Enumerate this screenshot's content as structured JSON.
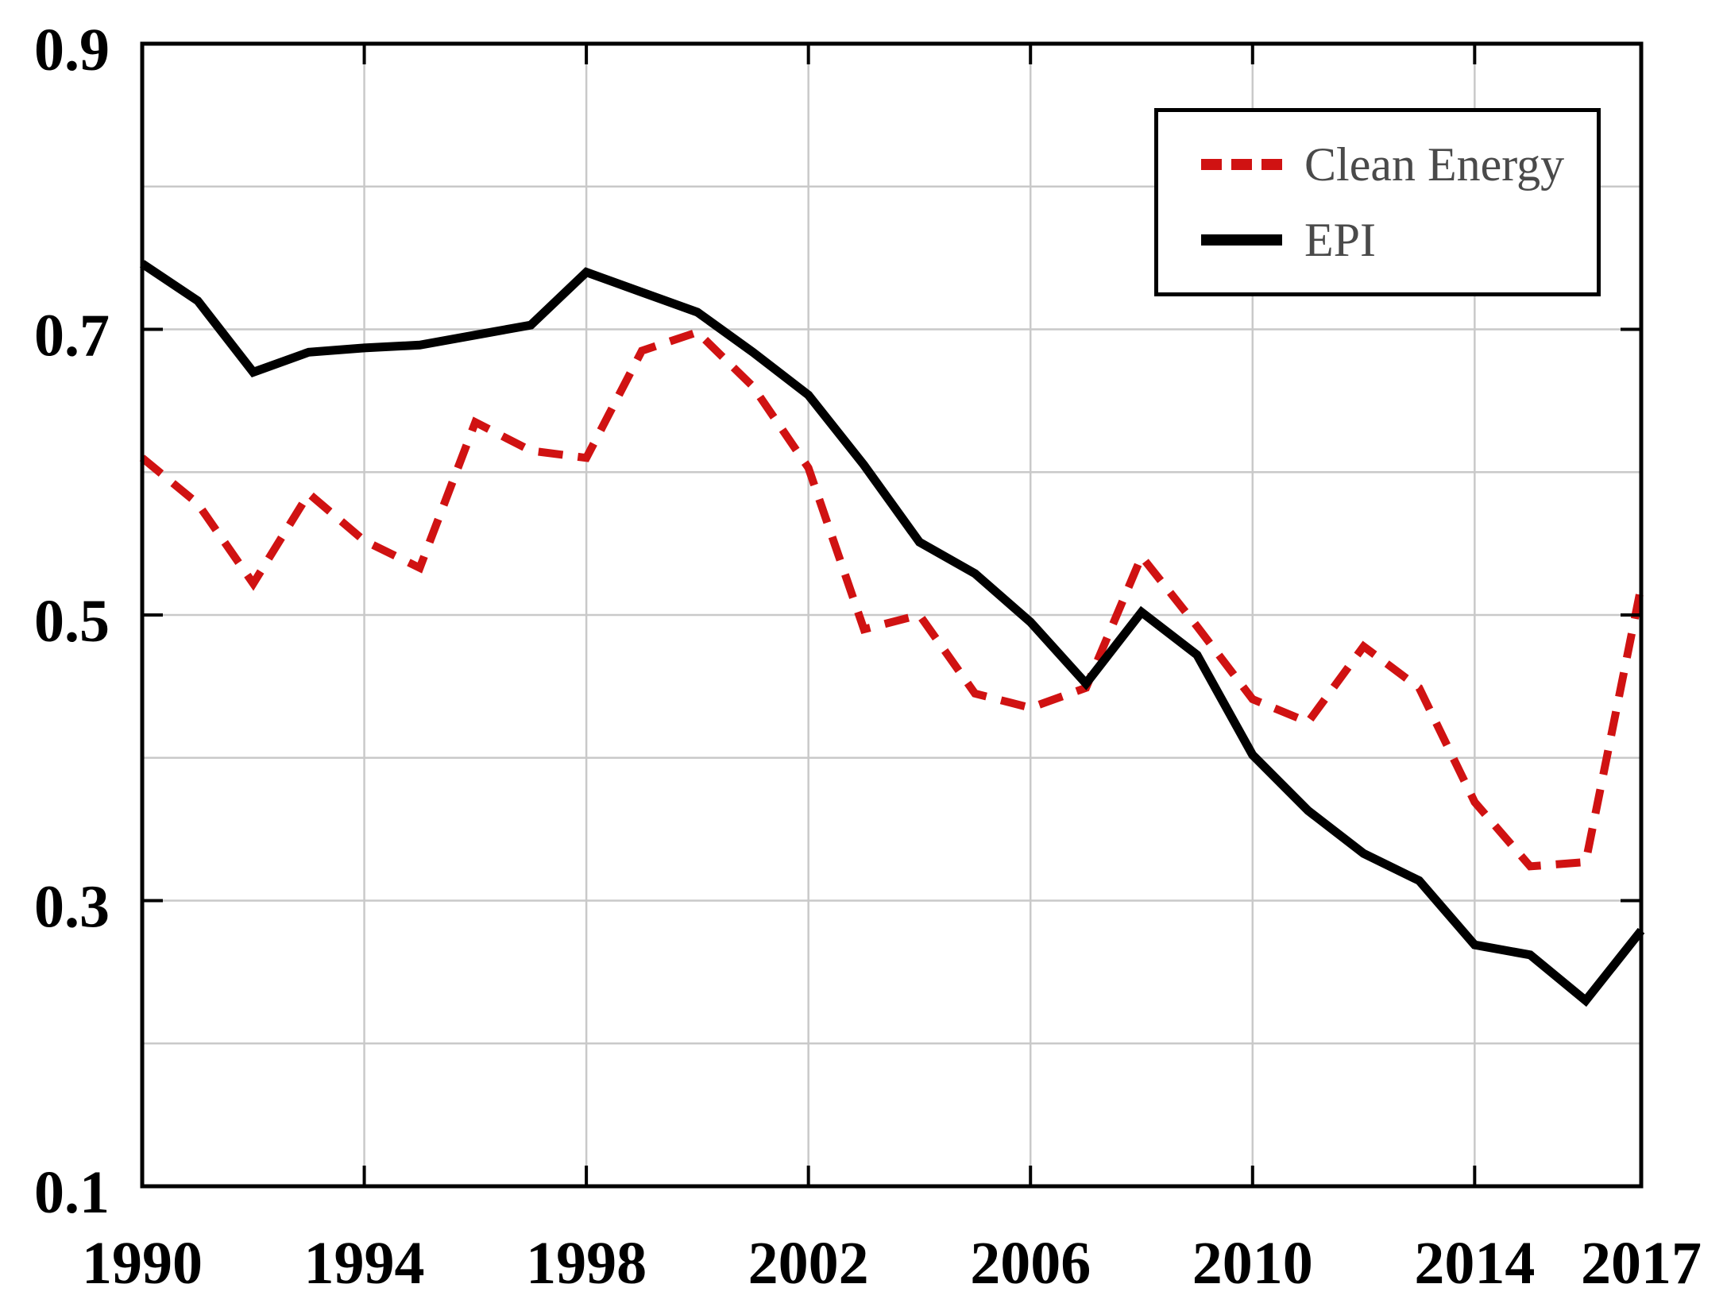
{
  "chart_data": {
    "type": "line",
    "title": "",
    "xlabel": "",
    "ylabel": "",
    "xlim": [
      1990,
      2017
    ],
    "ylim": [
      0.1,
      0.9
    ],
    "grid": true,
    "legend_position": "top-right",
    "x": [
      1990,
      1991,
      1992,
      1993,
      1994,
      1995,
      1996,
      1997,
      1998,
      1999,
      2000,
      2001,
      2002,
      2003,
      2004,
      2005,
      2006,
      2007,
      2008,
      2009,
      2010,
      2011,
      2012,
      2013,
      2014,
      2015,
      2016,
      2017
    ],
    "series": [
      {
        "name": "Clean Energy",
        "color": "#d01212",
        "dashed": true,
        "values": [
          0.61,
          0.578,
          0.522,
          0.585,
          0.552,
          0.533,
          0.635,
          0.615,
          0.61,
          0.685,
          0.698,
          0.66,
          0.603,
          0.49,
          0.5,
          0.445,
          0.435,
          0.449,
          0.541,
          0.492,
          0.441,
          0.425,
          0.478,
          0.449,
          0.369,
          0.324,
          0.327,
          0.52
        ]
      },
      {
        "name": "EPI",
        "color": "#000000",
        "dashed": false,
        "values": [
          0.746,
          0.72,
          0.67,
          0.684,
          0.687,
          0.689,
          0.696,
          0.703,
          0.74,
          0.726,
          0.712,
          0.684,
          0.654,
          0.605,
          0.551,
          0.529,
          0.495,
          0.452,
          0.502,
          0.472,
          0.402,
          0.363,
          0.333,
          0.314,
          0.269,
          0.262,
          0.23,
          0.279
        ]
      }
    ],
    "x_tick_values": [
      1990,
      1994,
      1998,
      2002,
      2006,
      2010,
      2014,
      2017
    ],
    "x_tick_labels": [
      "1990",
      "1994",
      "1998",
      "2002",
      "2006",
      "2010",
      "2014",
      "2017"
    ],
    "x_gridline_values": [
      1994,
      1998,
      2002,
      2006,
      2010,
      2014
    ],
    "y_tick_values": [
      0.9,
      0.7,
      0.5,
      0.3,
      0.1
    ],
    "y_tick_labels": [
      "0.9",
      "0.7",
      "0.5",
      "0.3",
      "0.1"
    ],
    "y_marked_tick_values": [
      0.7,
      0.5,
      0.3
    ],
    "y_gridline_values": [
      0.2,
      0.3,
      0.4,
      0.5,
      0.6,
      0.7,
      0.8
    ]
  },
  "legend": {
    "items": [
      {
        "label": "Clean Energy",
        "color": "#d01212",
        "dashed": true
      },
      {
        "label": "EPI",
        "color": "#000000",
        "dashed": false
      }
    ]
  },
  "colors": {
    "background": "#ffffff",
    "axis": "#000000",
    "gridline": "#c9c9c9",
    "legend_text": "#4a4a4a",
    "clean_energy": "#d01212",
    "epi": "#000000"
  }
}
